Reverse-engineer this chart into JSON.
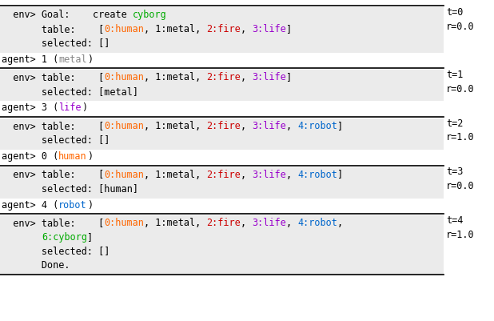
{
  "font_size": 8.5,
  "monospace_font": "DejaVu Sans Mono",
  "env_bg": "#ebebeb",
  "line_color": "#000000",
  "sections": [
    {
      "t": "t=0",
      "r": "r=0.0",
      "env_lines": [
        [
          {
            "text": "  env> Goal:    create ",
            "color": "#000000"
          },
          {
            "text": "cyborg",
            "color": "#00aa00"
          }
        ],
        [
          {
            "text": "       table:    [",
            "color": "#000000"
          },
          {
            "text": "0:human",
            "color": "#ff6600"
          },
          {
            "text": ", 1:metal, ",
            "color": "#000000"
          },
          {
            "text": "2:fire",
            "color": "#cc0000"
          },
          {
            "text": ", ",
            "color": "#000000"
          },
          {
            "text": "3:life",
            "color": "#9900cc"
          },
          {
            "text": "]",
            "color": "#000000"
          }
        ],
        [
          {
            "text": "       selected: []",
            "color": "#000000"
          }
        ]
      ],
      "agent_parts": [
        {
          "text": "agent> 1 (",
          "color": "#000000"
        },
        {
          "text": "metal",
          "color": "#888888"
        },
        {
          "text": ")",
          "color": "#000000"
        }
      ]
    },
    {
      "t": "t=1",
      "r": "r=0.0",
      "env_lines": [
        [
          {
            "text": "  env> table:    [",
            "color": "#000000"
          },
          {
            "text": "0:human",
            "color": "#ff6600"
          },
          {
            "text": ", 1:metal, ",
            "color": "#000000"
          },
          {
            "text": "2:fire",
            "color": "#cc0000"
          },
          {
            "text": ", ",
            "color": "#000000"
          },
          {
            "text": "3:life",
            "color": "#9900cc"
          },
          {
            "text": "]",
            "color": "#000000"
          }
        ],
        [
          {
            "text": "       selected: [metal]",
            "color": "#000000"
          }
        ]
      ],
      "agent_parts": [
        {
          "text": "agent> 3 (",
          "color": "#000000"
        },
        {
          "text": "life",
          "color": "#9900cc"
        },
        {
          "text": ")",
          "color": "#000000"
        }
      ]
    },
    {
      "t": "t=2",
      "r": "r=1.0",
      "env_lines": [
        [
          {
            "text": "  env> table:    [",
            "color": "#000000"
          },
          {
            "text": "0:human",
            "color": "#ff6600"
          },
          {
            "text": ", 1:metal, ",
            "color": "#000000"
          },
          {
            "text": "2:fire",
            "color": "#cc0000"
          },
          {
            "text": ", ",
            "color": "#000000"
          },
          {
            "text": "3:life",
            "color": "#9900cc"
          },
          {
            "text": ", ",
            "color": "#000000"
          },
          {
            "text": "4:robot",
            "color": "#0066cc"
          },
          {
            "text": "]",
            "color": "#000000"
          }
        ],
        [
          {
            "text": "       selected: []",
            "color": "#000000"
          }
        ]
      ],
      "agent_parts": [
        {
          "text": "agent> 0 (",
          "color": "#000000"
        },
        {
          "text": "human",
          "color": "#ff6600"
        },
        {
          "text": ")",
          "color": "#000000"
        }
      ]
    },
    {
      "t": "t=3",
      "r": "r=0.0",
      "env_lines": [
        [
          {
            "text": "  env> table:    [",
            "color": "#000000"
          },
          {
            "text": "0:human",
            "color": "#ff6600"
          },
          {
            "text": ", 1:metal, ",
            "color": "#000000"
          },
          {
            "text": "2:fire",
            "color": "#cc0000"
          },
          {
            "text": ", ",
            "color": "#000000"
          },
          {
            "text": "3:life",
            "color": "#9900cc"
          },
          {
            "text": ", ",
            "color": "#000000"
          },
          {
            "text": "4:robot",
            "color": "#0066cc"
          },
          {
            "text": "]",
            "color": "#000000"
          }
        ],
        [
          {
            "text": "       selected: [human]",
            "color": "#000000"
          }
        ]
      ],
      "agent_parts": [
        {
          "text": "agent> 4 (",
          "color": "#000000"
        },
        {
          "text": "robot",
          "color": "#0066cc"
        },
        {
          "text": ")",
          "color": "#000000"
        }
      ]
    },
    {
      "t": "t=4",
      "r": "r=1.0",
      "env_lines": [
        [
          {
            "text": "  env> table:    [",
            "color": "#000000"
          },
          {
            "text": "0:human",
            "color": "#ff6600"
          },
          {
            "text": ", 1:metal, ",
            "color": "#000000"
          },
          {
            "text": "2:fire",
            "color": "#cc0000"
          },
          {
            "text": ", ",
            "color": "#000000"
          },
          {
            "text": "3:life",
            "color": "#9900cc"
          },
          {
            "text": ", ",
            "color": "#000000"
          },
          {
            "text": "4:robot",
            "color": "#0066cc"
          },
          {
            "text": ", ",
            "color": "#000000"
          }
        ],
        [
          {
            "text": "       ",
            "color": "#000000"
          },
          {
            "text": "6:cyborg",
            "color": "#00aa00"
          },
          {
            "text": "]",
            "color": "#000000"
          }
        ],
        [
          {
            "text": "       selected: []",
            "color": "#000000"
          }
        ],
        [
          {
            "text": "       Done.",
            "color": "#000000"
          }
        ]
      ],
      "agent_parts": null
    }
  ]
}
